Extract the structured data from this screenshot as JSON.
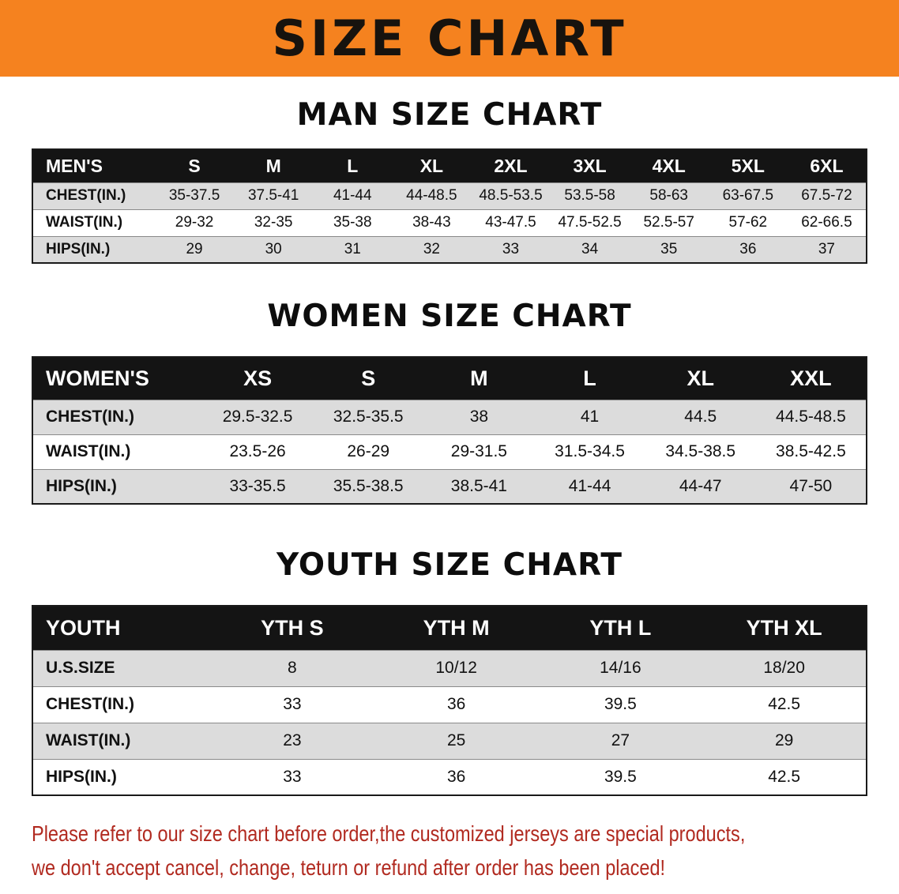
{
  "banner": {
    "title": "SIZE CHART"
  },
  "colors": {
    "banner_bg": "#F5821F",
    "table_header_bg": "#141414",
    "row_alt_bg": "#DCDCDC",
    "notice_red": "#B12A20"
  },
  "sections": [
    {
      "heading": "MAN SIZE CHART",
      "table": {
        "header_label": "MEN'S",
        "columns": [
          "S",
          "M",
          "L",
          "XL",
          "2XL",
          "3XL",
          "4XL",
          "5XL",
          "6XL"
        ],
        "rows": [
          {
            "label": "CHEST(IN.)",
            "values": [
              "35-37.5",
              "37.5-41",
              "41-44",
              "44-48.5",
              "48.5-53.5",
              "53.5-58",
              "58-63",
              "63-67.5",
              "67.5-72"
            ]
          },
          {
            "label": "WAIST(IN.)",
            "values": [
              "29-32",
              "32-35",
              "35-38",
              "38-43",
              "43-47.5",
              "47.5-52.5",
              "52.5-57",
              "57-62",
              "62-66.5"
            ]
          },
          {
            "label": "HIPS(IN.)",
            "values": [
              "29",
              "30",
              "31",
              "32",
              "33",
              "34",
              "35",
              "36",
              "37"
            ]
          }
        ]
      }
    },
    {
      "heading": "WOMEN SIZE CHART",
      "table": {
        "header_label": "WOMEN'S",
        "columns": [
          "XS",
          "S",
          "M",
          "L",
          "XL",
          "XXL"
        ],
        "rows": [
          {
            "label": "CHEST(IN.)",
            "values": [
              "29.5-32.5",
              "32.5-35.5",
              "38",
              "41",
              "44.5",
              "44.5-48.5"
            ]
          },
          {
            "label": "WAIST(IN.)",
            "values": [
              "23.5-26",
              "26-29",
              "29-31.5",
              "31.5-34.5",
              "34.5-38.5",
              "38.5-42.5"
            ]
          },
          {
            "label": "HIPS(IN.)",
            "values": [
              "33-35.5",
              "35.5-38.5",
              "38.5-41",
              "41-44",
              "44-47",
              "47-50"
            ]
          }
        ]
      }
    },
    {
      "heading": "YOUTH SIZE CHART",
      "table": {
        "header_label": "YOUTH",
        "columns": [
          "YTH S",
          "YTH M",
          "YTH L",
          "YTH XL"
        ],
        "rows": [
          {
            "label": "U.S.SIZE",
            "values": [
              "8",
              "10/12",
              "14/16",
              "18/20"
            ]
          },
          {
            "label": "CHEST(IN.)",
            "values": [
              "33",
              "36",
              "39.5",
              "42.5"
            ]
          },
          {
            "label": "WAIST(IN.)",
            "values": [
              "23",
              "25",
              "27",
              "29"
            ]
          },
          {
            "label": "HIPS(IN.)",
            "values": [
              "33",
              "36",
              "39.5",
              "42.5"
            ]
          }
        ]
      }
    }
  ],
  "notice": {
    "lines": [
      "Please refer to our size chart before order,the customized jerseys are special products,",
      "we don't accept cancel, change, teturn or refund after order has been placed!"
    ]
  }
}
